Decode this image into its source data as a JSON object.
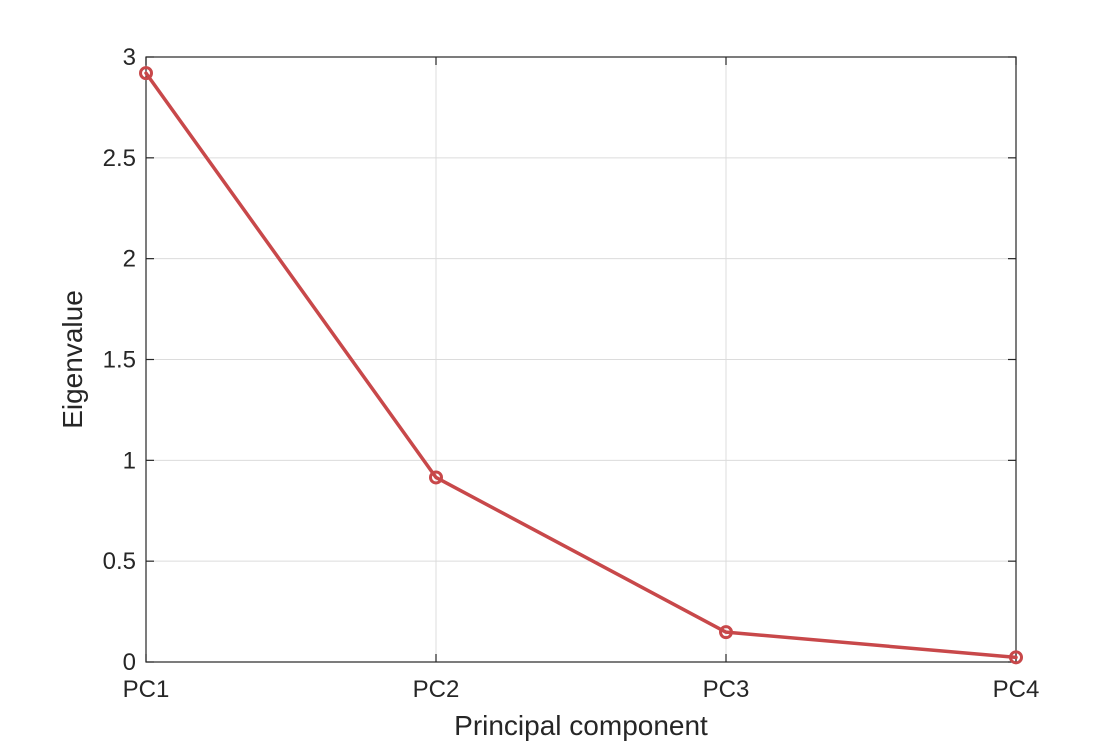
{
  "chart_data": {
    "type": "line",
    "categories": [
      "PC1",
      "PC2",
      "PC3",
      "PC4"
    ],
    "series": [
      {
        "values": [
          2.92,
          0.915,
          0.148,
          0.023
        ],
        "color": "#c8484a",
        "marker": "circle"
      }
    ],
    "title": "",
    "xlabel": "Principal component",
    "ylabel": "Eigenvalue",
    "ylim": [
      0,
      3
    ],
    "yticks": [
      "0",
      "0.5",
      "1",
      "1.5",
      "2",
      "2.5",
      "3"
    ],
    "grid": true,
    "legend": "none",
    "colors": {
      "line": "#c8484a",
      "axis": "#262626",
      "grid": "#dcdcdc"
    }
  }
}
